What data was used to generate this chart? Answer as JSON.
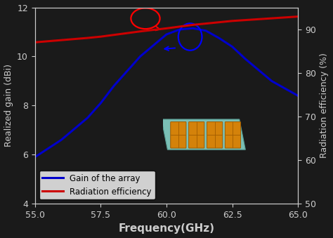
{
  "freq": [
    55,
    56,
    57,
    57.5,
    58,
    59,
    60,
    60.5,
    61,
    61.5,
    62,
    62.5,
    63,
    64,
    65
  ],
  "gain": [
    5.9,
    6.6,
    7.5,
    8.1,
    8.8,
    10.0,
    10.9,
    11.1,
    11.15,
    11.05,
    10.75,
    10.4,
    9.9,
    9.0,
    8.4
  ],
  "rad_eff_pct": [
    87.0,
    87.5,
    88.0,
    88.3,
    88.7,
    89.5,
    90.2,
    90.6,
    91.0,
    91.3,
    91.6,
    91.9,
    92.1,
    92.5,
    92.9
  ],
  "gain_color": "#0000cc",
  "rad_color": "#cc0000",
  "xlabel": "Frequency(GHz)",
  "ylabel_left": "Realized gain (dBi)",
  "ylabel_right": "Radiation efficiency (%)",
  "xlim": [
    55,
    65
  ],
  "ylim_left": [
    4,
    12
  ],
  "ylim_right": [
    50,
    95
  ],
  "xticks": [
    55,
    57.5,
    60,
    62.5,
    65
  ],
  "yticks_left": [
    4,
    6,
    8,
    10,
    12
  ],
  "yticks_right": [
    50,
    60,
    70,
    80,
    90
  ],
  "legend_gain": "Gain of the array",
  "legend_rad": "Radiation efficiency",
  "bg_color": "#1a1a1a",
  "plot_bg": "#1a1a1a",
  "linewidth": 2.2,
  "tick_color": "#cccccc",
  "label_color": "#cccccc",
  "spine_color": "#cccccc"
}
